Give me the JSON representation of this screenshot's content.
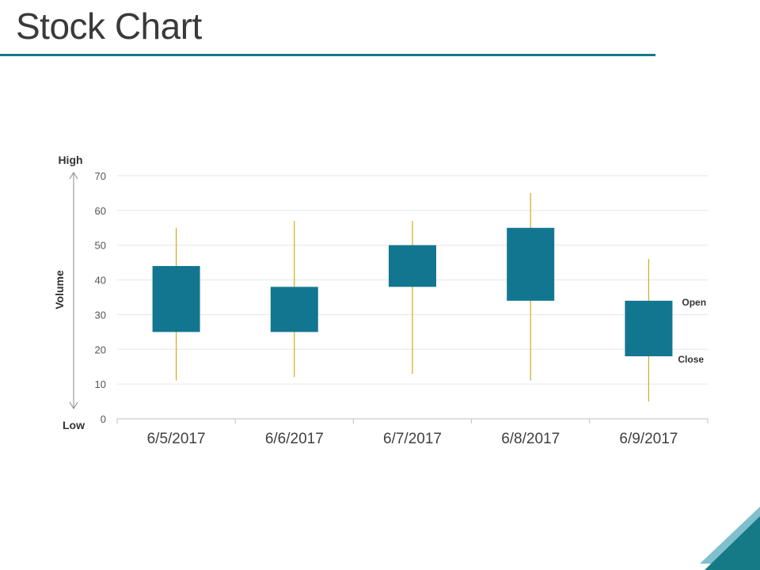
{
  "page": {
    "title": "Stock Chart"
  },
  "colors": {
    "accent": "#167a86",
    "candle": "#137691",
    "wick": "#d4aa1c",
    "grid": "#e6e6e6",
    "axis_text": "#555555",
    "arrow": "#8a8a8a",
    "corner_light": "#7fc0cc",
    "corner_dark": "#167a86"
  },
  "chart_data": {
    "type": "candlestick",
    "title": "",
    "ylabel": "Volume",
    "ylim": [
      0,
      70
    ],
    "yticks": [
      0,
      10,
      20,
      30,
      40,
      50,
      60,
      70
    ],
    "grid": true,
    "categories": [
      "6/5/2017",
      "6/6/2017",
      "6/7/2017",
      "6/8/2017",
      "6/9/2017"
    ],
    "series": [
      {
        "high": [
          55,
          57,
          57,
          65,
          46
        ],
        "low": [
          11,
          12,
          13,
          11,
          5
        ],
        "open": [
          44,
          38,
          50,
          55,
          34
        ],
        "close": [
          25,
          25,
          38,
          34,
          18
        ]
      }
    ],
    "annotations": {
      "high_label": "High",
      "low_label": "Low",
      "open_label": "Open",
      "close_label": "Close"
    }
  }
}
